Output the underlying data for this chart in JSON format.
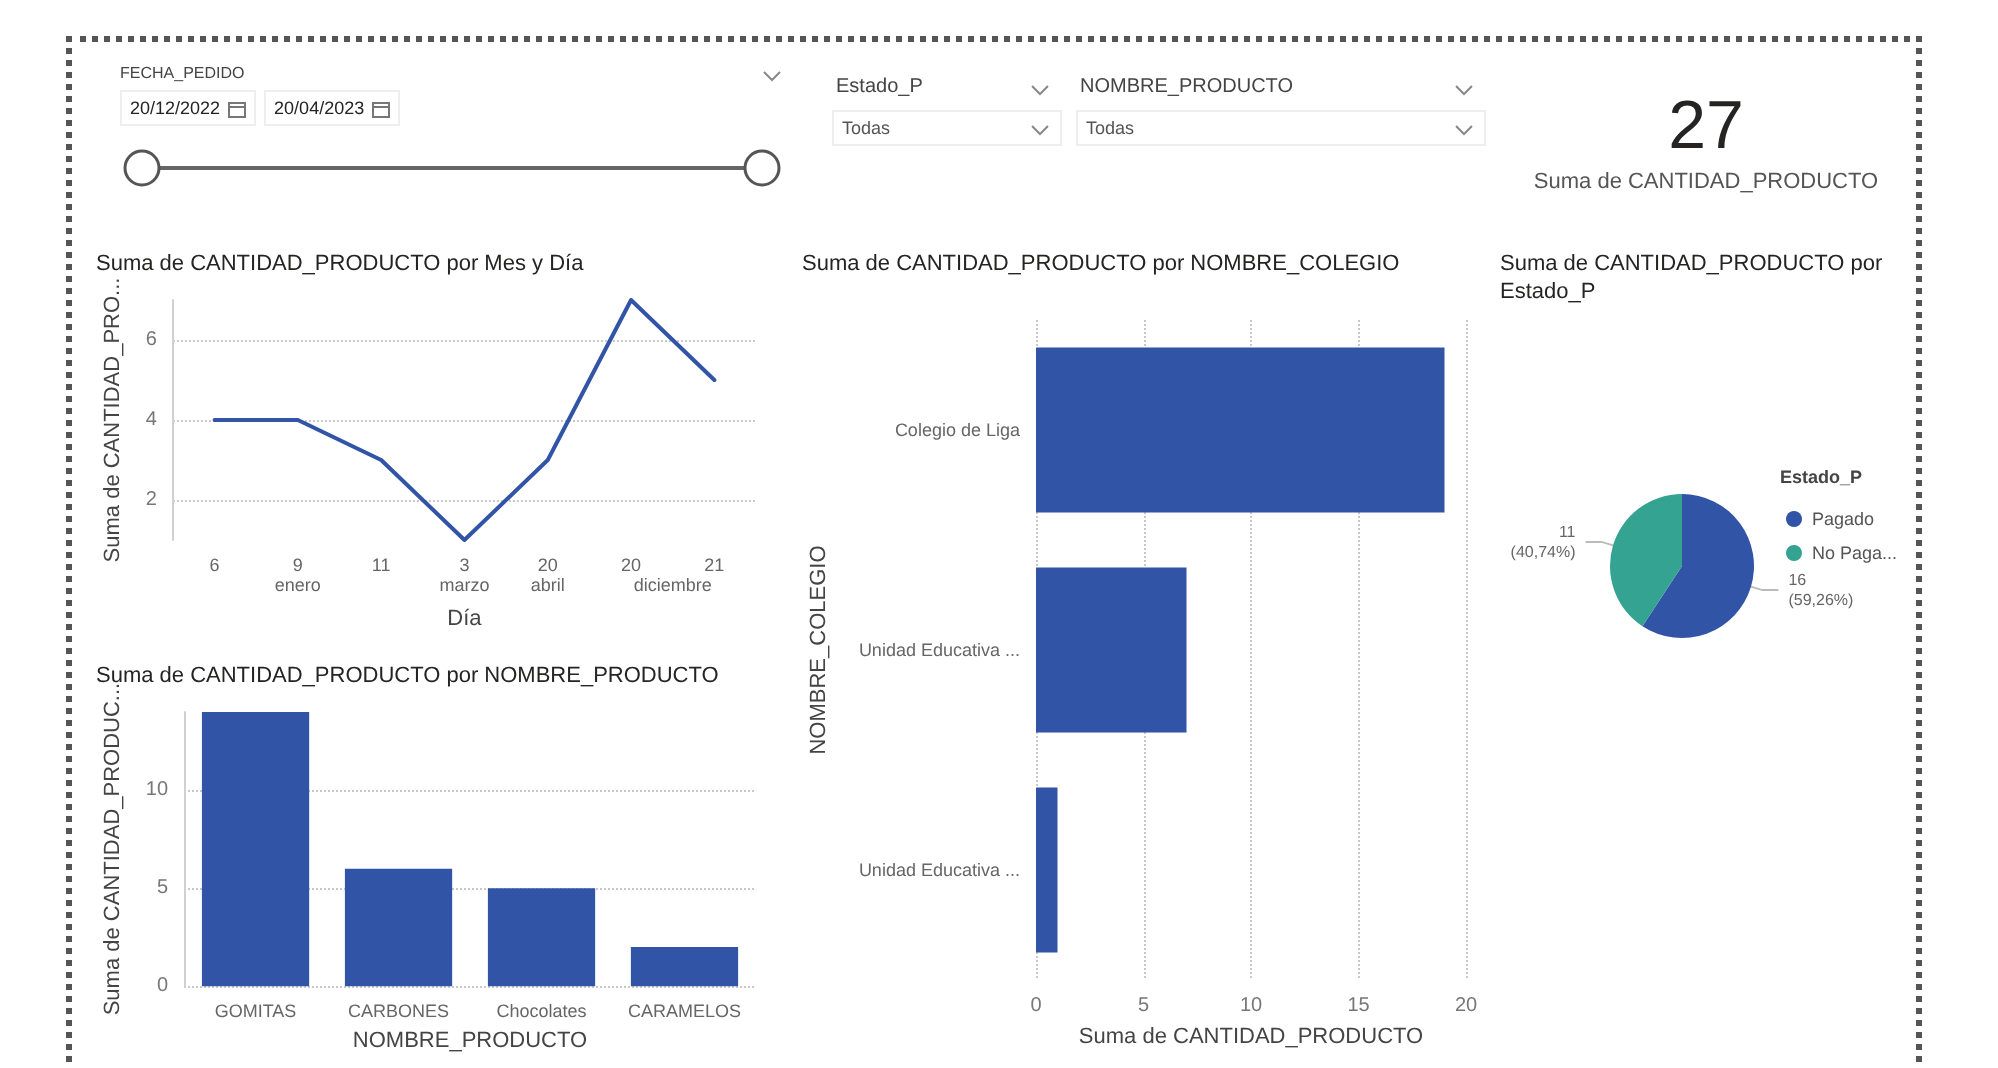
{
  "chart_data": [
    {
      "type": "other",
      "title": "FECHA_PEDIDO",
      "annotations": [
        "20/12/2022",
        "20/04/2023"
      ]
    },
    {
      "type": "other",
      "title": "Estado_P",
      "annotations": [
        "Todas"
      ]
    },
    {
      "type": "other",
      "title": "NOMBRE_PRODUCTO",
      "annotations": [
        "Todas"
      ]
    },
    {
      "type": "other",
      "subtitle": "Suma de CANTIDAD_PRODUCTO",
      "annotations": [
        "27"
      ]
    },
    {
      "type": "line",
      "title": "Suma de CANTIDAD_PRODUCTO por Mes y Día",
      "xlabel": "Día",
      "ylabel": "Suma de CANTIDAD_PRO...",
      "categories": [
        "6",
        "9",
        "11",
        "3",
        "20",
        "20",
        "21"
      ],
      "values": [
        4,
        4,
        3,
        1,
        3,
        7,
        5
      ],
      "color": "#3154a6",
      "ylim": [
        1,
        7
      ],
      "yticks": [
        2,
        4,
        6
      ],
      "grid": "y",
      "marker": "none",
      "line_style": "solid",
      "annotations": [
        "enero",
        "marzo",
        "abril",
        "diciembre"
      ]
    },
    {
      "type": "bar",
      "orientation": "horizontal",
      "title": "Suma de CANTIDAD_PRODUCTO por NOMBRE_COLEGIO",
      "xlabel": "Suma de CANTIDAD_PRODUCTO",
      "ylabel": "NOMBRE_COLEGIO",
      "categories": [
        "Colegio de Liga",
        "Unidad Educativa ...",
        "Unidad Educativa ..."
      ],
      "values": [
        19,
        7,
        1
      ],
      "color": "#3154a6",
      "xlim": [
        0,
        20
      ],
      "xticks": [
        0,
        5,
        10,
        15,
        20
      ],
      "grid": "x"
    },
    {
      "type": "pie",
      "title": "Suma de CANTIDAD_PRODUCTO por Estado_P",
      "legend_title": "Estado_P",
      "legend": "right",
      "categories": [
        "Pagado",
        "No Paga..."
      ],
      "values": [
        16,
        11
      ],
      "colors": [
        "#3154a6",
        "#35a391"
      ],
      "value_labels": [
        "16\n(59,26%)",
        "11\n(40,74%)"
      ]
    },
    {
      "type": "bar",
      "title": "Suma de CANTIDAD_PRODUCTO por NOMBRE_PRODUCTO",
      "xlabel": "NOMBRE_PRODUCTO",
      "ylabel": "Suma de CANTIDAD_PRODUC...",
      "categories": [
        "GOMITAS",
        "CARBONES",
        "Chocolates",
        "CARAMELOS"
      ],
      "values": [
        14,
        6,
        5,
        2
      ],
      "color": "#3154a6",
      "ylim": [
        0,
        14
      ],
      "yticks": [
        0,
        5,
        10
      ],
      "grid": "y"
    }
  ]
}
